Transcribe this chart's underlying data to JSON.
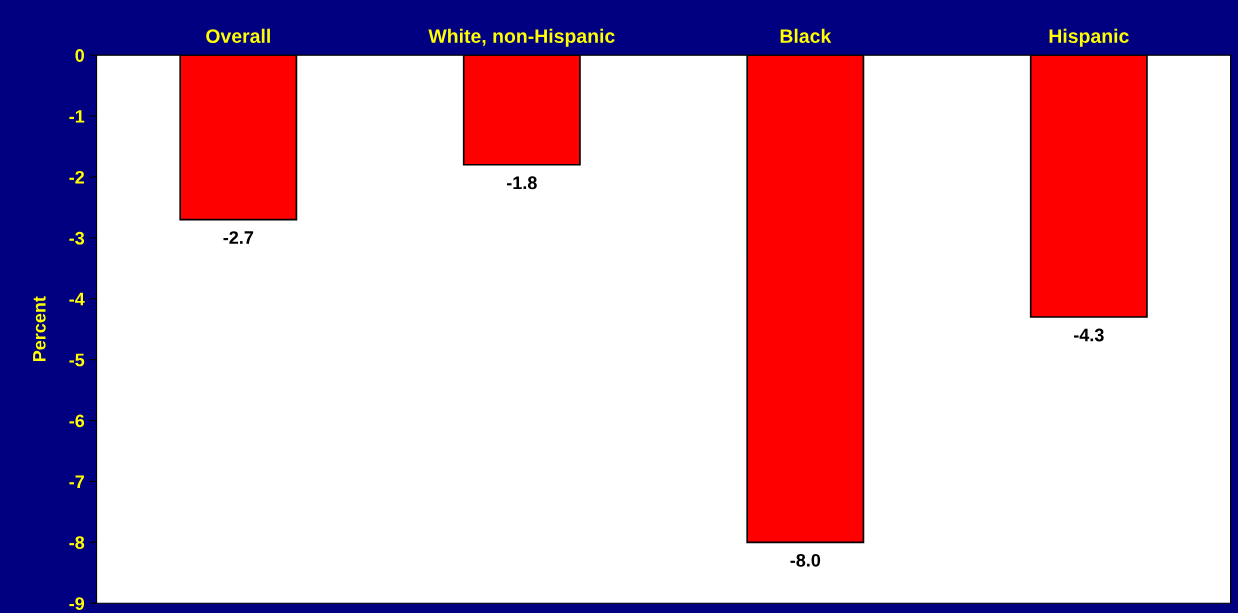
{
  "chart_data": {
    "type": "bar",
    "ylabel": "Percent",
    "categories": [
      "Overall",
      "White, non-Hispanic",
      "Black",
      "Hispanic"
    ],
    "values": [
      -2.7,
      -1.8,
      -8.0,
      -4.3
    ],
    "value_labels": [
      "-2.7",
      "-1.8",
      "-8.0",
      "-4.3"
    ],
    "color": "#ff0000",
    "ylim": [
      -9,
      0
    ],
    "yticks": [
      0,
      -1,
      -2,
      -3,
      -4,
      -5,
      -6,
      -7,
      -8,
      -9
    ],
    "grid": false,
    "legend": false
  }
}
